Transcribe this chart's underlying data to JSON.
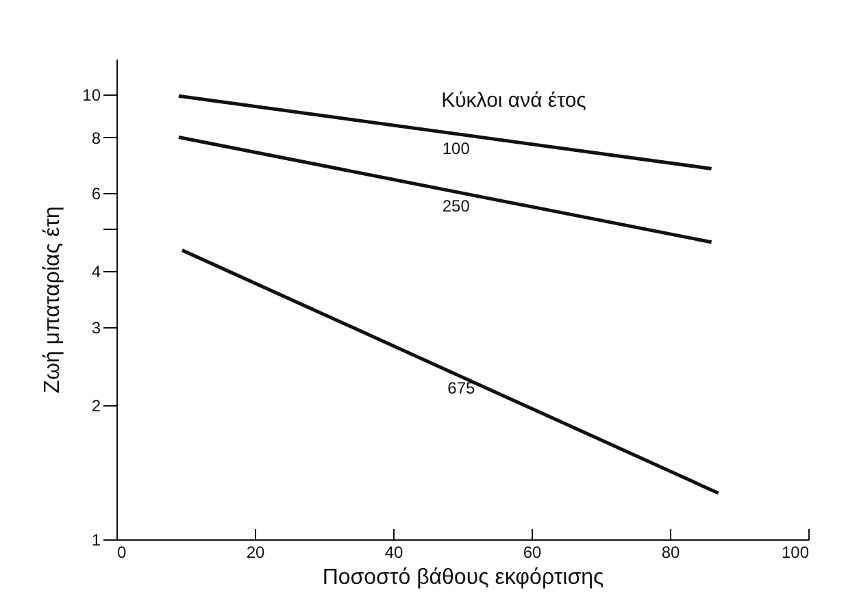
{
  "chart_data": {
    "type": "line",
    "xlabel": "Ποσοστό βάθους εκφόρτισης",
    "ylabel": "Ζωή μπαταρίας έτη",
    "legend_title": "Κύκλοι ανά έτος",
    "log": "y",
    "grid": false,
    "xlim": [
      0,
      100
    ],
    "xticks": [
      0,
      20,
      40,
      60,
      80,
      100
    ],
    "ylim": [
      1,
      12
    ],
    "yticks": [
      1,
      2,
      3,
      4,
      {
        "value": 5,
        "label": null
      },
      6,
      8,
      10
    ],
    "series": [
      {
        "name": "100",
        "color": "#111111",
        "x": [
          9,
          86
        ],
        "values": [
          9.9,
          6.8
        ]
      },
      {
        "name": "250",
        "color": "#111111",
        "x": [
          9,
          86
        ],
        "values": [
          8,
          4.65
        ]
      },
      {
        "name": "675",
        "color": "#111111",
        "x": [
          9.5,
          87
        ],
        "values": [
          4.46,
          1.27
        ]
      }
    ]
  }
}
